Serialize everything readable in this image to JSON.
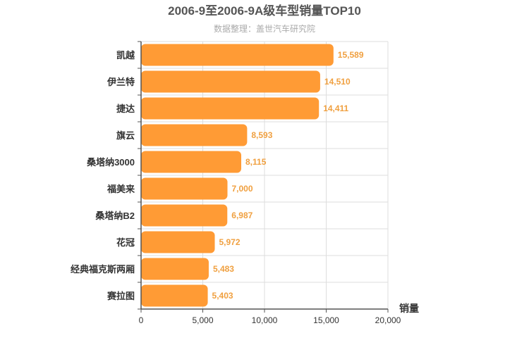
{
  "chart_data": {
    "type": "bar",
    "orientation": "horizontal",
    "title": "2006-9至2006-9A级车型销量TOP10",
    "subtitle": "数据整理：盖世汽车研究院",
    "xlabel": "销量",
    "ylabel": "",
    "xlim": [
      0,
      20000
    ],
    "xticks": [
      0,
      5000,
      10000,
      15000,
      20000
    ],
    "xtick_labels": [
      "0",
      "5,000",
      "10,000",
      "15,000",
      "20,000"
    ],
    "categories": [
      "凯越",
      "伊兰特",
      "捷达",
      "旗云",
      "桑塔纳3000",
      "福美来",
      "桑塔纳B2",
      "花冠",
      "经典福克斯两厢",
      "赛拉图"
    ],
    "values": [
      15589,
      14510,
      14411,
      8593,
      8115,
      7000,
      6987,
      5972,
      5483,
      5403
    ],
    "value_labels": [
      "15,589",
      "14,510",
      "14,411",
      "8,593",
      "8,115",
      "7,000",
      "6,987",
      "5,972",
      "5,483",
      "5,403"
    ],
    "bar_color": "#ff9b35",
    "value_label_color": "#f0a040",
    "grid": true
  }
}
